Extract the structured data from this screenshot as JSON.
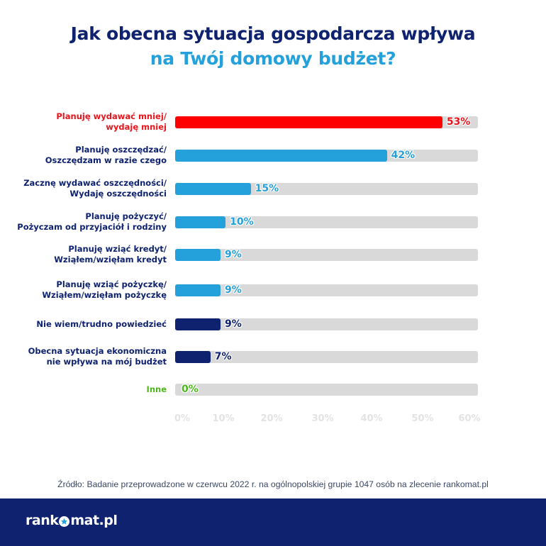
{
  "title": {
    "line1": "Jak obecna sytuacja gospodarcza wpływa",
    "line2": "na Twój domowy budżet?"
  },
  "colors": {
    "title_dark": "#0e2270",
    "title_light": "#24a0da",
    "red": "#ff0000",
    "blue": "#24a0da",
    "navy": "#0e2270",
    "green": "#4cb71a",
    "track": "#d9d9d9",
    "tick": "#e3e3e3"
  },
  "chart_data": {
    "type": "bar",
    "orientation": "horizontal",
    "title": "Jak obecna sytuacja gospodarcza wpływa na Twój domowy budżet?",
    "xlabel": "",
    "ylabel": "",
    "xlim": [
      0,
      60
    ],
    "unit": "%",
    "grid": false,
    "ticks": [
      "0%",
      "10%",
      "20%",
      "30%",
      "40%",
      "50%",
      "60%"
    ],
    "categories": [
      {
        "lines": [
          "Planuję wydawać mniej/",
          "wydaję mniej"
        ],
        "value": 53,
        "label": "53%",
        "color": "#ff0000",
        "label_color": "#e8141b"
      },
      {
        "lines": [
          "Planuję oszczędzać/",
          "Oszczędzam w razie czego"
        ],
        "value": 42,
        "label": "42%",
        "color": "#24a0da",
        "label_color": "#24a0da"
      },
      {
        "lines": [
          "Zacznę wydawać oszczędności/",
          "Wydaję oszczędności"
        ],
        "value": 15,
        "label": "15%",
        "color": "#24a0da",
        "label_color": "#24a0da"
      },
      {
        "lines": [
          "Planuję pożyczyć/",
          "Pożyczam od przyjaciół i rodziny"
        ],
        "value": 10,
        "label": "10%",
        "color": "#24a0da",
        "label_color": "#24a0da"
      },
      {
        "lines": [
          "Planuję wziąć kredyt/",
          "Wziąłem/wzięłam kredyt"
        ],
        "value": 9,
        "label": "9%",
        "color": "#24a0da",
        "label_color": "#24a0da"
      },
      {
        "lines": [
          "Planuję wziąć pożyczkę/",
          "Wziąłem/wzięłam pożyczkę"
        ],
        "value": 9,
        "label": "9%",
        "color": "#24a0da",
        "label_color": "#24a0da"
      },
      {
        "lines": [
          "Nie wiem/trudno powiedzieć"
        ],
        "value": 9,
        "label": "9%",
        "color": "#0e2270",
        "label_color": "#0e2270"
      },
      {
        "lines": [
          "Obecna sytuacja ekonomiczna",
          "nie wpływa na mój budżet"
        ],
        "value": 7,
        "label": "7%",
        "color": "#0e2270",
        "label_color": "#0e2270"
      },
      {
        "lines": [
          "Inne"
        ],
        "value": 0,
        "label": "0%",
        "color": "#4cb71a",
        "label_color": "#4cb71a"
      }
    ]
  },
  "source": "Źródło: Badanie przeprowadzone w czerwcu 2022 r. na ogólnopolskiej grupie 1047 osób na zlecenie rankomat.pl",
  "footer": {
    "logo_left": "rank",
    "logo_right": "mat.pl"
  }
}
